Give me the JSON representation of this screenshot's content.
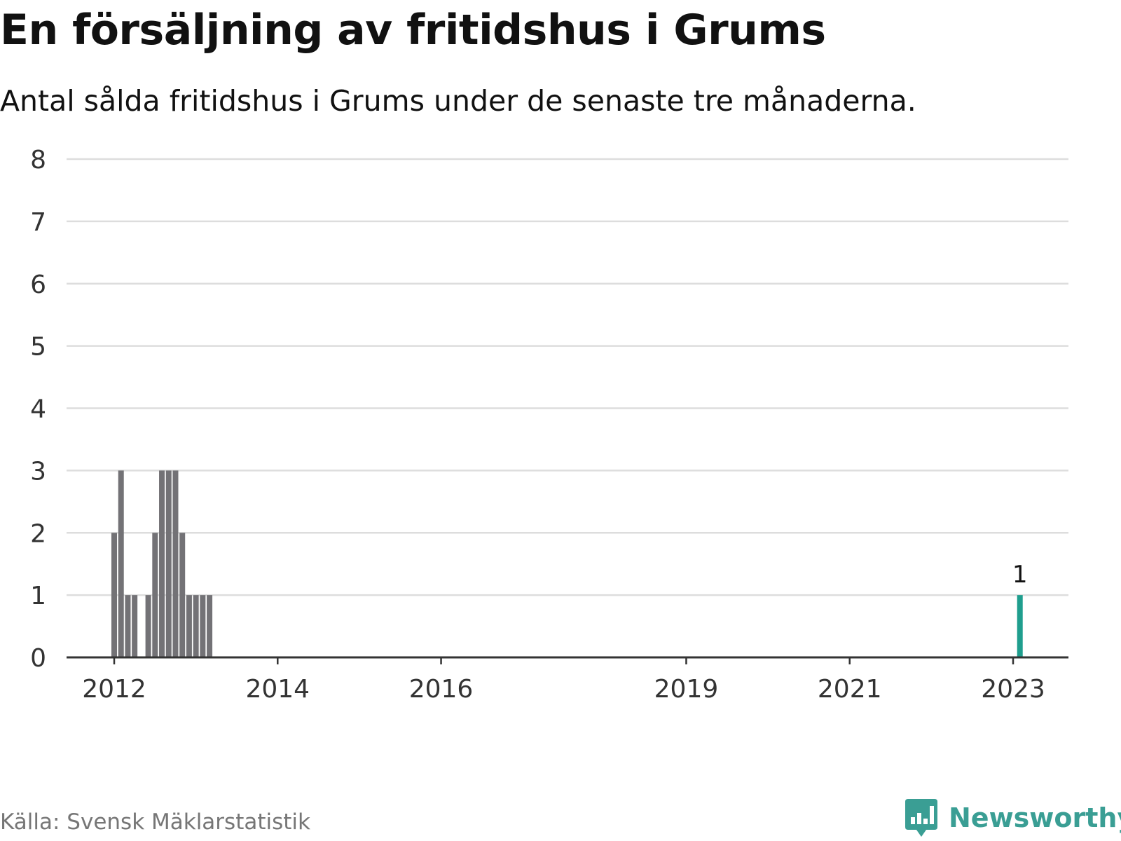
{
  "title": "En försäljning av fritidshus i Grums",
  "subtitle": "Antal sålda fritidshus i Grums under de senaste tre månaderna.",
  "source": "Källa: Svensk Mäklarstatistik",
  "brand": {
    "name": "Newsworthy",
    "logo_icon": "bar-chart-speech-bubble-icon"
  },
  "colors": {
    "bar": "#737276",
    "highlight": "#1f9e8e",
    "grid": "#dddddd",
    "axis": "#333333",
    "brand": "#3a9e94"
  },
  "chart_data": {
    "type": "bar",
    "title": "En försäljning av fritidshus i Grums",
    "subtitle": "Antal sålda fritidshus i Grums under de senaste tre månaderna.",
    "xlabel": "",
    "ylabel": "",
    "ylim": [
      0,
      8
    ],
    "yticks": [
      0,
      1,
      2,
      3,
      4,
      5,
      6,
      7,
      8
    ],
    "grid": true,
    "x_ticks": [
      {
        "label": "2012",
        "index": 0
      },
      {
        "label": "2014",
        "index": 24
      },
      {
        "label": "2016",
        "index": 48
      },
      {
        "label": "2019",
        "index": 84
      },
      {
        "label": "2021",
        "index": 108
      },
      {
        "label": "2023",
        "index": 132
      }
    ],
    "first_period": "2012-01",
    "period": "month",
    "values": [
      2,
      3,
      1,
      1,
      0,
      1,
      2,
      3,
      3,
      3,
      2,
      1,
      1,
      1,
      1,
      0,
      0,
      0,
      0,
      0,
      0,
      0,
      0,
      0,
      0,
      0,
      0,
      0,
      0,
      0,
      0,
      0,
      0,
      0,
      0,
      0,
      0,
      0,
      0,
      0,
      0,
      0,
      0,
      0,
      0,
      0,
      0,
      0,
      0,
      0,
      0,
      0,
      0,
      0,
      0,
      0,
      0,
      0,
      0,
      0,
      0,
      0,
      0,
      0,
      0,
      0,
      0,
      0,
      0,
      0,
      0,
      0,
      0,
      0,
      0,
      0,
      0,
      0,
      0,
      0,
      0,
      0,
      0,
      0,
      0,
      0,
      0,
      0,
      0,
      0,
      0,
      0,
      0,
      0,
      0,
      0,
      0,
      0,
      0,
      0,
      0,
      0,
      0,
      0,
      0,
      0,
      0,
      0,
      0,
      0,
      0,
      0,
      0,
      0,
      0,
      0,
      0,
      0,
      0,
      0,
      0,
      0,
      0,
      0,
      0,
      0,
      0,
      0,
      0,
      0,
      0,
      0,
      0,
      1
    ],
    "highlight_last": true,
    "annotations": [
      {
        "index": 133,
        "text": "1"
      }
    ]
  }
}
